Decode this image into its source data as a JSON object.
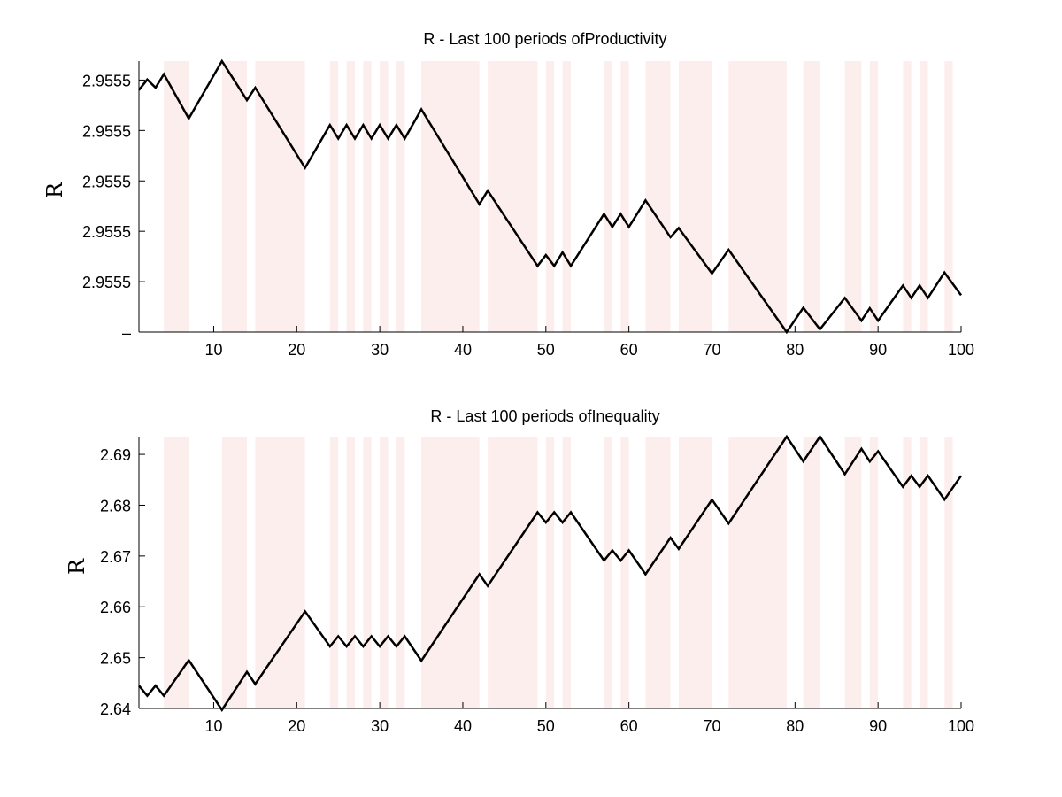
{
  "chart_data": [
    {
      "type": "line",
      "title": "R - Last 100 periods ofProductivity",
      "xlabel": "",
      "ylabel": "R",
      "xlim": [
        1,
        100
      ],
      "ylim": [
        0,
        1
      ],
      "xticks": [
        10,
        20,
        30,
        40,
        50,
        60,
        70,
        80,
        90,
        100
      ],
      "yticks": [
        {
          "value": 0.0,
          "label": "–"
        },
        {
          "value": 0.186,
          "label": "2.9555"
        },
        {
          "value": 0.372,
          "label": "2.9555"
        },
        {
          "value": 0.558,
          "label": "2.9555"
        },
        {
          "value": 0.744,
          "label": "2.9555"
        },
        {
          "value": 0.93,
          "label": "2.9555"
        }
      ],
      "note_units": "y values normalized within axis range; tick labels print 2.9555",
      "shaded_periods": [
        [
          4,
          7
        ],
        [
          11,
          14
        ],
        [
          15,
          21
        ],
        [
          24,
          25
        ],
        [
          26,
          27
        ],
        [
          28,
          29
        ],
        [
          30,
          31
        ],
        [
          32,
          33
        ],
        [
          35,
          42
        ],
        [
          43,
          49
        ],
        [
          50,
          51
        ],
        [
          52,
          53
        ],
        [
          57,
          58
        ],
        [
          59,
          60
        ],
        [
          62,
          65
        ],
        [
          66,
          70
        ],
        [
          72,
          79
        ],
        [
          81,
          83
        ],
        [
          86,
          88
        ],
        [
          89,
          90
        ],
        [
          93,
          94
        ],
        [
          95,
          96
        ],
        [
          98,
          99
        ]
      ],
      "shade_color": "#fdeeee",
      "series": [
        {
          "x": [
            1,
            2,
            3,
            4,
            7,
            11,
            14,
            15,
            21,
            24,
            25,
            26,
            27,
            28,
            29,
            30,
            31,
            32,
            33,
            35,
            42,
            43,
            49,
            50,
            51,
            52,
            53,
            57,
            58,
            59,
            60,
            62,
            65,
            66,
            70,
            72,
            79,
            81,
            83,
            86,
            88,
            89,
            90,
            93,
            94,
            95,
            96,
            98,
            100
          ],
          "values": [
            0.893,
            0.932,
            0.902,
            0.952,
            0.788,
            1.0,
            0.856,
            0.902,
            0.606,
            0.764,
            0.714,
            0.764,
            0.714,
            0.764,
            0.714,
            0.764,
            0.714,
            0.764,
            0.714,
            0.822,
            0.472,
            0.522,
            0.244,
            0.284,
            0.244,
            0.294,
            0.244,
            0.436,
            0.388,
            0.436,
            0.388,
            0.486,
            0.35,
            0.384,
            0.216,
            0.304,
            0.0,
            0.09,
            0.01,
            0.126,
            0.042,
            0.088,
            0.042,
            0.172,
            0.126,
            0.172,
            0.126,
            0.22,
            0.136
          ],
          "color": "#000000"
        }
      ]
    },
    {
      "type": "line",
      "title": "R - Last 100 periods ofInequality",
      "xlabel": "",
      "ylabel": "R",
      "xlim": [
        1,
        100
      ],
      "ylim": [
        2.64,
        2.6935
      ],
      "xticks": [
        10,
        20,
        30,
        40,
        50,
        60,
        70,
        80,
        90,
        100
      ],
      "yticks": [
        {
          "value": 2.64,
          "label": "2.64"
        },
        {
          "value": 2.65,
          "label": "2.65"
        },
        {
          "value": 2.66,
          "label": "2.66"
        },
        {
          "value": 2.67,
          "label": "2.67"
        },
        {
          "value": 2.68,
          "label": "2.68"
        },
        {
          "value": 2.69,
          "label": "2.69"
        }
      ],
      "shaded_periods": [
        [
          4,
          7
        ],
        [
          11,
          14
        ],
        [
          15,
          21
        ],
        [
          24,
          25
        ],
        [
          26,
          27
        ],
        [
          28,
          29
        ],
        [
          30,
          31
        ],
        [
          32,
          33
        ],
        [
          35,
          42
        ],
        [
          43,
          49
        ],
        [
          50,
          51
        ],
        [
          52,
          53
        ],
        [
          57,
          58
        ],
        [
          59,
          60
        ],
        [
          62,
          65
        ],
        [
          66,
          70
        ],
        [
          72,
          79
        ],
        [
          81,
          83
        ],
        [
          86,
          88
        ],
        [
          89,
          90
        ],
        [
          93,
          94
        ],
        [
          95,
          96
        ],
        [
          98,
          99
        ]
      ],
      "shade_color": "#fdeeee",
      "series": [
        {
          "x": [
            1,
            2,
            3,
            4,
            7,
            11,
            14,
            15,
            21,
            24,
            25,
            26,
            27,
            28,
            29,
            30,
            31,
            32,
            33,
            35,
            42,
            43,
            49,
            50,
            51,
            52,
            53,
            57,
            58,
            59,
            60,
            62,
            65,
            66,
            70,
            72,
            79,
            81,
            83,
            86,
            88,
            89,
            90,
            93,
            94,
            95,
            96,
            98,
            100
          ],
          "values": [
            2.6445,
            2.6425,
            2.6445,
            2.6425,
            2.6495,
            2.6397,
            2.6472,
            2.6448,
            2.6591,
            2.6522,
            2.6542,
            2.6522,
            2.6542,
            2.6522,
            2.6542,
            2.6522,
            2.6542,
            2.6522,
            2.6542,
            2.6494,
            2.6664,
            2.6641,
            2.6786,
            2.6766,
            2.6786,
            2.6766,
            2.6786,
            2.6691,
            2.6711,
            2.6691,
            2.6711,
            2.6664,
            2.6736,
            2.6714,
            2.6811,
            2.6764,
            2.6935,
            2.6886,
            2.6935,
            2.6861,
            2.6911,
            2.6886,
            2.6906,
            2.6836,
            2.6858,
            2.6836,
            2.6858,
            2.6811,
            2.6858
          ],
          "color": "#000000"
        }
      ]
    }
  ]
}
